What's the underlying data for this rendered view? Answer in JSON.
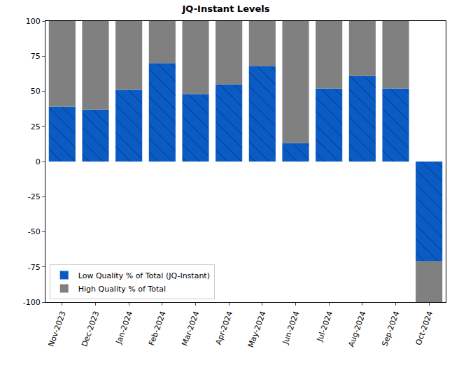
{
  "chart_data": {
    "type": "bar",
    "title": "JQ-Instant Levels",
    "categories": [
      "Nov-2023",
      "Dec-2023",
      "Jan-2024",
      "Feb-2024",
      "Mar-2024",
      "Apr-2024",
      "May-2024",
      "Jun-2024",
      "Jul-2024",
      "Aug-2024",
      "Sep-2024",
      "Oct-2024"
    ],
    "series": [
      {
        "name": "Low Quality % of Total (JQ-Instant)",
        "color": "#0a5bc4",
        "marker": "hatch",
        "values": [
          39,
          37,
          51,
          70,
          48,
          55,
          68,
          13,
          52,
          61,
          52,
          -71
        ]
      },
      {
        "name": "High Quality % of Total",
        "color": "#808080",
        "values": [
          61,
          63,
          49,
          30,
          52,
          45,
          32,
          87,
          48,
          39,
          48,
          -29
        ]
      }
    ],
    "stacked": true,
    "ylim": [
      -100,
      100
    ],
    "yticks": [
      -100,
      -75,
      -50,
      -25,
      0,
      25,
      50,
      75,
      100
    ],
    "grid": false,
    "legend": "lower left"
  }
}
